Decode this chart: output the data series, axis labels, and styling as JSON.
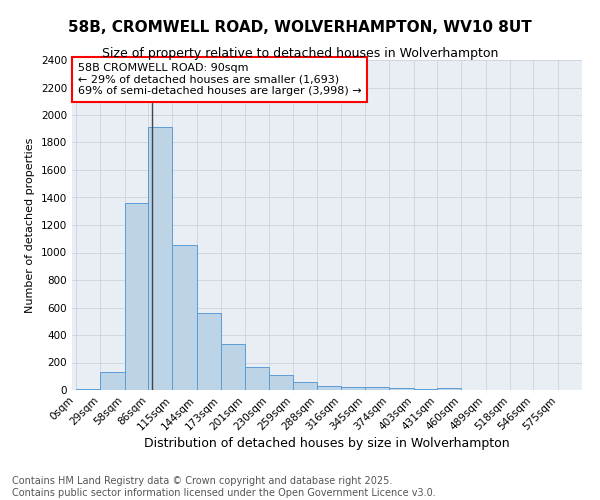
{
  "title1": "58B, CROMWELL ROAD, WOLVERHAMPTON, WV10 8UT",
  "title2": "Size of property relative to detached houses in Wolverhampton",
  "xlabel": "Distribution of detached houses by size in Wolverhampton",
  "ylabel": "Number of detached properties",
  "footnote1": "Contains HM Land Registry data © Crown copyright and database right 2025.",
  "footnote2": "Contains public sector information licensed under the Open Government Licence v3.0.",
  "annotation_title": "58B CROMWELL ROAD: 90sqm",
  "annotation_line1": "← 29% of detached houses are smaller (1,693)",
  "annotation_line2": "69% of semi-detached houses are larger (3,998) →",
  "property_size": 90,
  "bar_color": "#bdd4e7",
  "bar_edge_color": "#5b9bd5",
  "vline_color": "#444444",
  "background_color": "#e8eef4",
  "grid_color": "#c5cfd8",
  "bins_start": [
    0,
    29,
    58,
    86,
    115,
    144,
    173,
    201,
    230,
    259,
    288,
    316,
    345,
    374,
    403,
    431,
    460,
    489,
    518,
    546,
    575
  ],
  "bin_labels": [
    "0sqm",
    "29sqm",
    "58sqm",
    "86sqm",
    "115sqm",
    "144sqm",
    "173sqm",
    "201sqm",
    "230sqm",
    "259sqm",
    "288sqm",
    "316sqm",
    "345sqm",
    "374sqm",
    "403sqm",
    "431sqm",
    "460sqm",
    "489sqm",
    "518sqm",
    "546sqm",
    "575sqm"
  ],
  "counts": [
    10,
    130,
    1360,
    1910,
    1055,
    560,
    335,
    170,
    110,
    60,
    30,
    25,
    20,
    15,
    5,
    15,
    2,
    2,
    2,
    2,
    2
  ],
  "ylim": [
    0,
    2400
  ],
  "yticks": [
    0,
    200,
    400,
    600,
    800,
    1000,
    1200,
    1400,
    1600,
    1800,
    2000,
    2200,
    2400
  ],
  "xlim": [
    -5,
    604
  ],
  "title1_fontsize": 11,
  "title2_fontsize": 9,
  "xlabel_fontsize": 9,
  "ylabel_fontsize": 8,
  "tick_fontsize": 7.5,
  "footnote_fontsize": 7,
  "annotation_fontsize": 8
}
